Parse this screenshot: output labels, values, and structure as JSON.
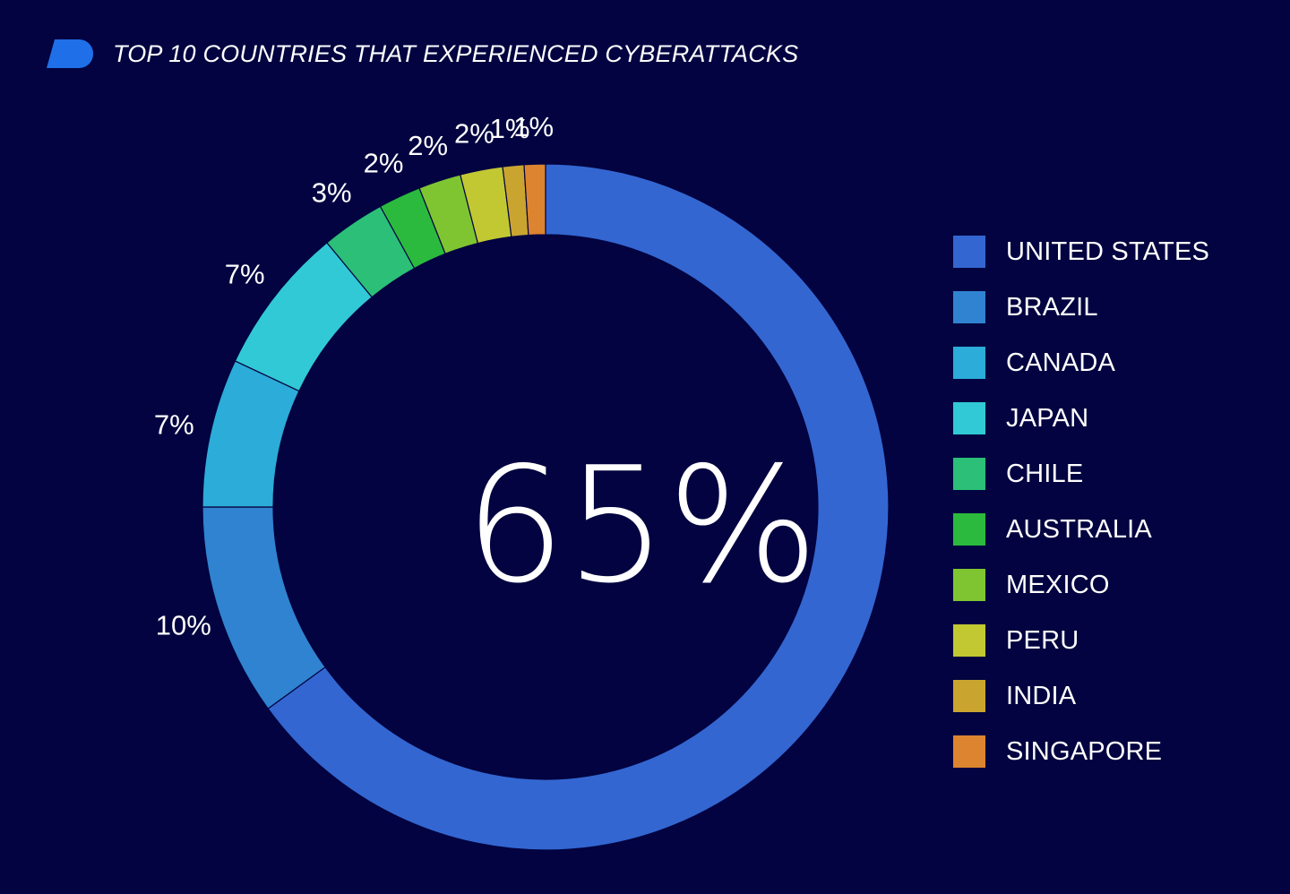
{
  "header": {
    "title": "TOP 10 COUNTRIES THAT EXPERIENCED CYBERATTACKS",
    "logo_icon": "brand-d-logo-icon",
    "logo_color": "#1f6fe8"
  },
  "chart_data": {
    "type": "pie",
    "variant": "donut",
    "title": "TOP 10 COUNTRIES THAT EXPERIENCED CYBERATTACKS",
    "center_label": "65%",
    "legend_position": "right",
    "categories": [
      "UNITED STATES",
      "BRAZIL",
      "CANADA",
      "JAPAN",
      "CHILE",
      "AUSTRALIA",
      "MEXICO",
      "PERU",
      "INDIA",
      "SINGAPORE"
    ],
    "values": [
      65,
      10,
      7,
      7,
      3,
      2,
      2,
      2,
      1,
      1
    ],
    "value_labels": [
      "",
      "10%",
      "7%",
      "7%",
      "3%",
      "2%",
      "2%",
      "2%",
      "1%",
      "1%"
    ],
    "colors": [
      "#3366d1",
      "#3083d0",
      "#2cacd8",
      "#31c9d6",
      "#2bbf78",
      "#2bba3d",
      "#7fc532",
      "#c2c832",
      "#c9a530",
      "#dd8430"
    ],
    "background": "#020340"
  }
}
